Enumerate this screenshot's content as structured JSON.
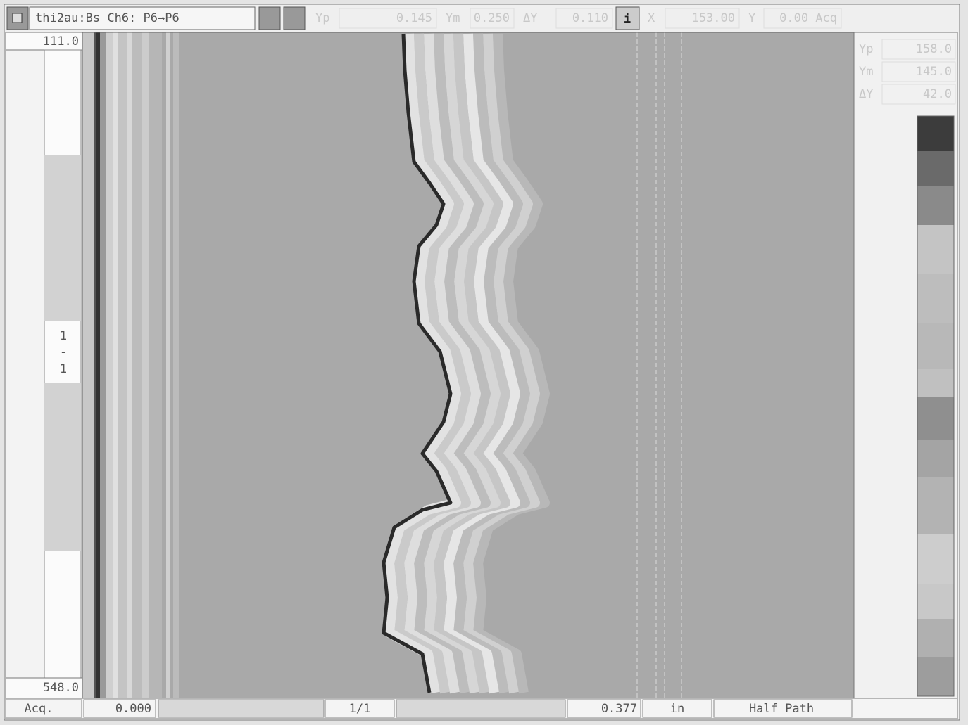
{
  "toolbar": {
    "title": "thi2au:Bs Ch6: P6→P6",
    "info": "i",
    "fields": [
      {
        "label": "Yp",
        "value": "0.145"
      },
      {
        "label": "Ym",
        "value": "0.250"
      },
      {
        "label": "ΔY",
        "value": "0.110"
      },
      {
        "label": "X",
        "value": "153.00"
      },
      {
        "label": "Y",
        "value": "0.00 Acq"
      }
    ]
  },
  "left_panel": {
    "top": "111.0",
    "bottom": "548.0",
    "index": [
      "1",
      "-",
      "1"
    ]
  },
  "right_panel": {
    "fields": [
      {
        "label": "Yp",
        "value": "158.0"
      },
      {
        "label": "Ym",
        "value": "145.0"
      },
      {
        "label": "ΔY",
        "value": "42.0"
      }
    ]
  },
  "status_bar": {
    "mode": "Acq.",
    "start": "0.000",
    "page": "1/1",
    "thickness": "0.377",
    "unit": "in",
    "path": "Half Path"
  }
}
